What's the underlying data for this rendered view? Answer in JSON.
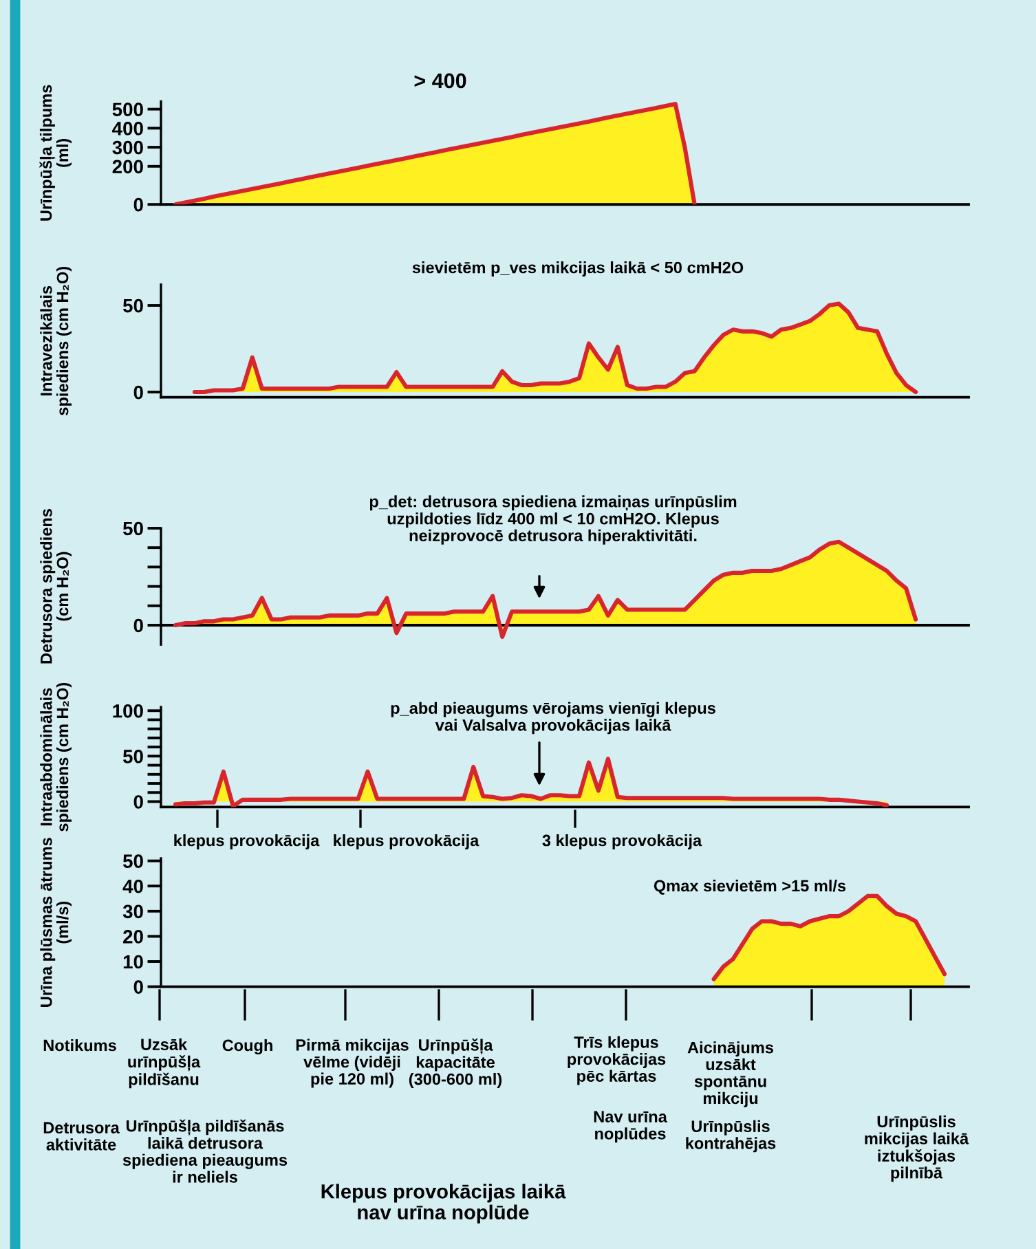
{
  "chart_data": [
    {
      "type": "area",
      "ylabel": "Urīnpūšļa tilpums\n(ml)",
      "ylim": [
        0,
        540
      ],
      "yticks": [
        0,
        200,
        300,
        400,
        500
      ],
      "tick_labels": "y",
      "annotations": [
        "> 400"
      ],
      "categories": [
        null,
        null,
        null,
        null,
        null,
        null,
        null,
        null,
        null,
        null,
        null,
        null,
        null,
        null,
        null,
        null,
        null,
        null,
        null,
        null,
        null,
        null,
        null,
        null,
        null,
        null,
        null,
        null,
        null,
        null,
        null,
        null,
        null,
        null,
        null,
        null,
        null,
        null,
        null,
        null,
        null,
        null,
        null,
        null,
        null,
        null,
        null,
        null,
        null,
        null,
        null,
        null,
        null,
        null,
        null
      ],
      "series": [
        {
          "color": "#fff022",
          "values": [
            0,
            10,
            20,
            30,
            41,
            51,
            61,
            71,
            81,
            91,
            101,
            111,
            122,
            132,
            142,
            152,
            162,
            172,
            182,
            192,
            203,
            213,
            223,
            233,
            243,
            253,
            263,
            273,
            284,
            294,
            304,
            314,
            324,
            334,
            344,
            354,
            365,
            375,
            385,
            395,
            405,
            415,
            425,
            435,
            446,
            456,
            466,
            476,
            486,
            496,
            506,
            517,
            527,
            296,
            0
          ]
        }
      ]
    },
    {
      "type": "area",
      "title": "sievietēm p_ves mikcijas laikā < 50 cmH2O",
      "ylabel": "Intravezikālais\nspiediens (cm H₂O)",
      "ylim": [
        -3,
        62
      ],
      "yticks": [
        0,
        50
      ],
      "tick_labels": "y",
      "categories": [
        null,
        null,
        null,
        null,
        null,
        null,
        null,
        null,
        null,
        null,
        null,
        null,
        null,
        null,
        null,
        null,
        null,
        null,
        null,
        null,
        null,
        null,
        null,
        null,
        null,
        null,
        null,
        null,
        null,
        null,
        null,
        null,
        null,
        null,
        null,
        null,
        null,
        null,
        null,
        null,
        null,
        null,
        null,
        null,
        null,
        null,
        null,
        null,
        null,
        null,
        null,
        null,
        null,
        null,
        null,
        null,
        null,
        null,
        null,
        null,
        null,
        null,
        null,
        null,
        null,
        null,
        null,
        null,
        null,
        null,
        null,
        null,
        null,
        null,
        null,
        null
      ],
      "series": [
        {
          "color": "#fff022",
          "values": [
            0,
            0,
            1,
            1,
            1,
            2,
            20,
            2,
            2,
            2,
            2,
            2,
            2,
            2,
            2,
            3,
            3,
            3,
            3,
            3,
            3,
            11.5,
            3,
            3,
            3,
            3,
            3,
            3,
            3,
            3,
            3,
            3,
            12,
            6,
            4,
            4,
            5,
            5,
            5,
            6,
            8,
            28,
            20,
            13,
            26,
            4,
            2,
            2,
            3,
            3,
            6,
            11,
            12,
            20,
            27,
            33,
            36,
            35,
            35,
            34,
            32,
            36,
            37,
            39,
            41,
            45,
            50,
            51,
            46,
            37,
            36,
            35,
            22,
            11,
            4,
            0
          ]
        }
      ]
    },
    {
      "type": "area",
      "ylabel": "Detrusora spiediens\n(cm H₂O)",
      "ylim": [
        -10,
        50
      ],
      "yticks": [
        0,
        {
          "value": 10,
          "label": null
        },
        {
          "value": 20,
          "label": null
        },
        {
          "value": 30,
          "label": null
        },
        {
          "value": 40,
          "label": null
        },
        50
      ],
      "tick_labels": "y",
      "annotations": [
        "p_det: detrusora spiediena izmaiņas urīnpūslim\nuzpildoties līdz 400 ml < 10 cmH2O. Klepus\nneizprovocē detrusora hiperaktivitāti."
      ],
      "categories": [
        null,
        null,
        null,
        null,
        null,
        null,
        null,
        null,
        null,
        null,
        null,
        null,
        null,
        null,
        null,
        null,
        null,
        null,
        null,
        null,
        null,
        null,
        null,
        null,
        null,
        null,
        null,
        null,
        null,
        null,
        null,
        null,
        null,
        null,
        null,
        null,
        null,
        null,
        null,
        null,
        null,
        null,
        null,
        null,
        null,
        null,
        null,
        null,
        null,
        null,
        null,
        null,
        null,
        null,
        null,
        null,
        null,
        null,
        null,
        null,
        null,
        null,
        null,
        null,
        null,
        null,
        null,
        null,
        null,
        null,
        null,
        null,
        null,
        null,
        null,
        null,
        null,
        null
      ],
      "series": [
        {
          "color": "#fff022",
          "values": [
            0,
            1,
            1,
            2,
            2,
            3,
            3,
            4,
            5,
            14,
            3,
            3,
            4,
            4,
            4,
            4,
            5,
            5,
            5,
            5,
            6,
            6,
            14,
            -4,
            6,
            6,
            6,
            6,
            6,
            7,
            7,
            7,
            7,
            15,
            -6,
            7,
            7,
            7,
            7,
            7,
            7,
            7,
            7,
            8,
            15,
            5,
            13,
            8,
            8,
            8,
            8,
            8,
            8,
            8,
            13,
            18,
            23,
            26,
            27,
            27,
            28,
            28,
            28,
            29,
            31,
            33,
            35,
            39,
            42,
            43,
            40,
            37,
            34,
            31,
            28,
            23,
            19,
            3
          ]
        }
      ]
    },
    {
      "type": "area",
      "ylabel": "Intraabdominālais\nspiediens (cm H₂O)",
      "ylim": [
        -6,
        104
      ],
      "yticks": [
        0,
        {
          "value": 10,
          "label": null
        },
        {
          "value": 20,
          "label": null
        },
        {
          "value": 30,
          "label": null
        },
        {
          "value": 40,
          "label": null
        },
        50,
        {
          "value": 60,
          "label": null
        },
        {
          "value": 70,
          "label": null
        },
        {
          "value": 80,
          "label": null
        },
        {
          "value": 90,
          "label": null
        },
        100
      ],
      "tick_labels": "y",
      "annotations": [
        "p_abd pieaugums vērojams vienīgi klepus\nvai Valsalva provokācijas laikā",
        "klepus provokācija",
        "klepus provokācija",
        "3 klepus provokācija"
      ],
      "categories": [
        null,
        null,
        null,
        null,
        null,
        null,
        null,
        null,
        null,
        null,
        null,
        null,
        null,
        null,
        null,
        null,
        null,
        null,
        null,
        null,
        null,
        null,
        null,
        null,
        null,
        null,
        null,
        null,
        null,
        null,
        null,
        null,
        null,
        null,
        null,
        null,
        null,
        null,
        null,
        null,
        null,
        null,
        null,
        null,
        null,
        null,
        null,
        null,
        null,
        null,
        null,
        null,
        null,
        null,
        null,
        null,
        null,
        null,
        null,
        null,
        null,
        null,
        null,
        null,
        null,
        null,
        null,
        null,
        null,
        null,
        null,
        null,
        null,
        null,
        null
      ],
      "series": [
        {
          "color": "#fff022",
          "values": [
            -3,
            -2,
            -2,
            -1,
            -1,
            33,
            -5,
            2,
            2,
            2,
            2,
            2,
            3,
            3,
            3,
            3,
            3,
            3,
            3,
            3,
            33,
            3,
            3,
            3,
            3,
            3,
            3,
            3,
            3,
            3,
            3,
            38,
            6,
            5,
            3,
            4,
            7,
            6,
            3,
            7,
            7,
            6,
            6,
            43,
            12,
            47,
            5,
            4,
            4,
            4,
            4,
            4,
            4,
            4,
            4,
            4,
            4,
            4,
            3,
            3,
            3,
            3,
            3,
            3,
            3,
            3,
            3,
            3,
            2,
            2,
            1,
            0,
            -1,
            -2,
            -4
          ]
        }
      ]
    },
    {
      "type": "area",
      "ylabel": "Urīna plūsmas ātrums\n(ml/s)",
      "ylim": [
        0,
        51
      ],
      "yticks": [
        0,
        10,
        20,
        30,
        40,
        50
      ],
      "tick_labels": "y",
      "annotations": [
        "Qmax sievietēm >15 ml/s",
        "Notikums",
        "Uzsāk\nurīnpūšļa\npildīšanu",
        "Cough",
        "Pirmā mikcijas\nvēlme (vidēji\npie 120 ml)",
        "Urīnpūšļa\nkapacitāte\n(300-600 ml)",
        "Trīs klepus\nprovokācijas\npēc kārtas",
        "Aicinājums\nuzsākt\nspontānu\nmikciju",
        "Detrusora\naktivitāte",
        "Urīnpūšļa pildīšanās\nlaikā detrusora\nspiediena pieaugums\nir neliels",
        "Nav urīna\nnoplūdes",
        "Urīnpūslis\nkontrahējas",
        "Urīnpūslis\nmikcijas laikā\niztukšojas\npilnībā",
        "Klepus provokācijas laikā\nnav urīna noplūde"
      ],
      "categories": [
        null,
        null,
        null,
        null,
        null,
        null,
        null,
        null,
        null,
        null,
        null,
        null,
        null,
        null,
        null,
        null,
        null,
        null,
        null,
        null,
        null,
        null,
        null,
        null,
        null,
        null,
        null,
        null,
        null,
        null,
        null,
        null,
        null,
        null,
        null,
        null,
        null,
        null,
        null,
        null,
        null,
        null,
        null,
        null,
        null,
        null,
        null,
        null,
        null,
        null,
        null,
        null,
        null,
        null,
        null,
        null,
        null,
        null,
        null,
        null,
        null,
        null,
        null,
        null,
        null,
        null,
        null,
        null,
        null,
        null,
        null,
        null,
        null,
        null,
        null,
        null,
        null,
        null,
        null,
        null,
        null,
        null,
        null,
        null
      ],
      "series": [
        {
          "color": "#fff022",
          "values": [
            null,
            null,
            null,
            null,
            null,
            null,
            null,
            null,
            null,
            null,
            null,
            null,
            null,
            null,
            null,
            null,
            null,
            null,
            null,
            null,
            null,
            null,
            null,
            null,
            null,
            null,
            null,
            null,
            null,
            null,
            null,
            null,
            null,
            null,
            null,
            null,
            null,
            null,
            null,
            null,
            null,
            null,
            null,
            null,
            null,
            null,
            null,
            null,
            null,
            null,
            null,
            null,
            null,
            null,
            null,
            null,
            null,
            3,
            8,
            11,
            17,
            23,
            26,
            26,
            25,
            25,
            24,
            26,
            27,
            28,
            28,
            30,
            33,
            36,
            36,
            32,
            29,
            28,
            26,
            19,
            12,
            5,
            null,
            null
          ]
        }
      ]
    }
  ]
}
